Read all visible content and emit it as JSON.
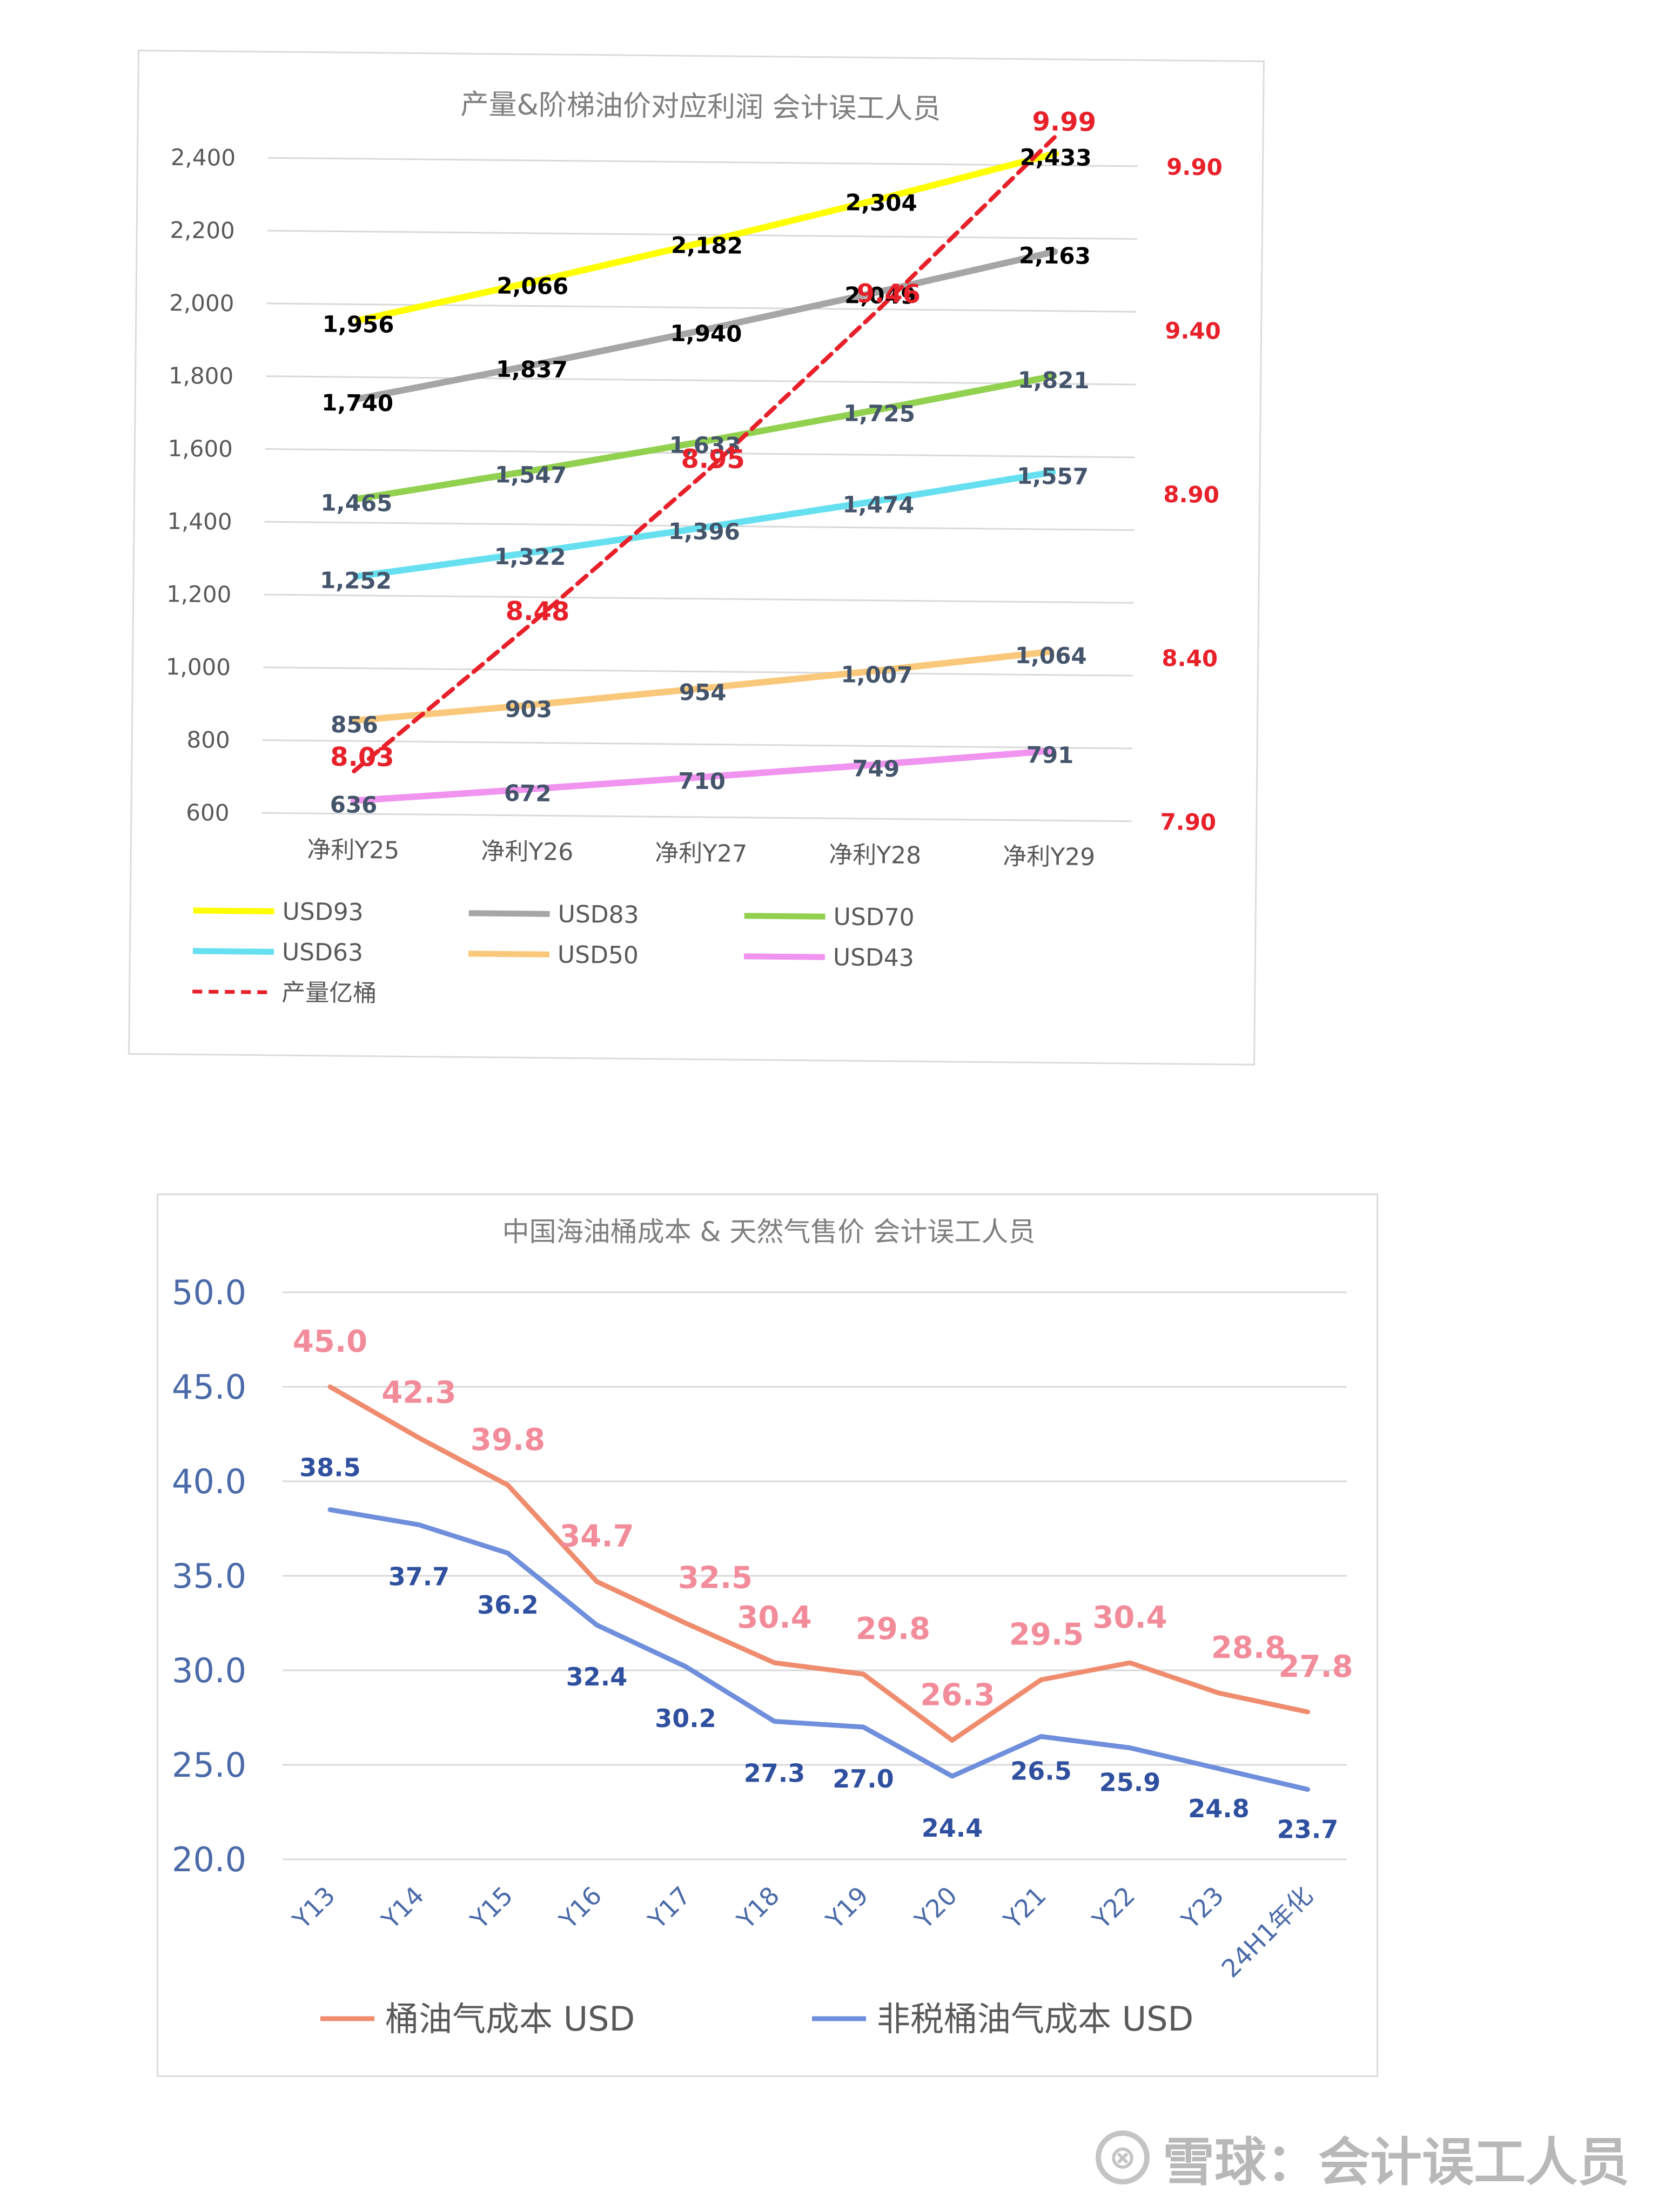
{
  "chart_data": [
    {
      "type": "line",
      "title": "产量&阶梯油价对应利润 会计误工人员",
      "categories": [
        "净利Y25",
        "净利Y26",
        "净利Y27",
        "净利Y28",
        "净利Y29"
      ],
      "y_axis_left": {
        "ticks": [
          "600",
          "800",
          "1,000",
          "1,200",
          "1,400",
          "1,600",
          "1,800",
          "2,000",
          "2,200",
          "2,400"
        ],
        "ylim": [
          600,
          2400
        ]
      },
      "y_axis_right": {
        "ticks": [
          "7.90",
          "8.40",
          "8.90",
          "9.40",
          "9.90"
        ],
        "ylim": [
          7.9,
          9.9
        ]
      },
      "grid": true,
      "legend_placement": "bottom",
      "series": [
        {
          "name": "USD93",
          "color": "#ffff00",
          "axis": "left",
          "values": [
            1956,
            2066,
            2182,
            2304,
            2433
          ],
          "labels": [
            "1,956",
            "2,066",
            "2,182",
            "2,304",
            "2,433"
          ],
          "label_color": "#000000",
          "dashed": false
        },
        {
          "name": "USD83",
          "color": "#a6a6a6",
          "axis": "left",
          "values": [
            1740,
            1837,
            1940,
            2049,
            2163
          ],
          "labels": [
            "1,740",
            "1,837",
            "1,940",
            "2,049",
            "2,163"
          ],
          "label_color": "#000000",
          "dashed": false
        },
        {
          "name": "USD70",
          "color": "#92d050",
          "axis": "left",
          "values": [
            1465,
            1547,
            1633,
            1725,
            1821
          ],
          "labels": [
            "1,465",
            "1,547",
            "1,633",
            "1,725",
            "1,821"
          ],
          "label_color": "#44546a",
          "dashed": false
        },
        {
          "name": "USD63",
          "color": "#66e0f0",
          "axis": "left",
          "values": [
            1252,
            1322,
            1396,
            1474,
            1557
          ],
          "labels": [
            "1,252",
            "1,322",
            "1,396",
            "1,474",
            "1,557"
          ],
          "label_color": "#44546a",
          "dashed": false
        },
        {
          "name": "USD50",
          "color": "#fac87a",
          "axis": "left",
          "values": [
            856,
            903,
            954,
            1007,
            1064
          ],
          "labels": [
            "856",
            "903",
            "954",
            "1,007",
            "1,064"
          ],
          "label_color": "#44546a",
          "dashed": false
        },
        {
          "name": "USD43",
          "color": "#f094f0",
          "axis": "left",
          "values": [
            636,
            672,
            710,
            749,
            791
          ],
          "labels": [
            "636",
            "672",
            "710",
            "749",
            "791"
          ],
          "label_color": "#44546a",
          "dashed": false
        },
        {
          "name": "产量亿桶",
          "color": "#e8202a",
          "axis": "right",
          "values": [
            8.03,
            8.48,
            8.95,
            9.46,
            9.99
          ],
          "labels": [
            "8.03",
            "8.48",
            "8.95",
            "9.46",
            "9.99"
          ],
          "label_color": "#e8202a",
          "dashed": true
        }
      ],
      "legend_order": [
        "USD93",
        "USD83",
        "USD70",
        "USD63",
        "USD50",
        "USD43",
        "产量亿桶"
      ]
    },
    {
      "type": "line",
      "title": "中国海油桶成本 & 天然气售价 会计误工人员",
      "categories": [
        "Y13",
        "Y14",
        "Y15",
        "Y16",
        "Y17",
        "Y18",
        "Y19",
        "Y20",
        "Y21",
        "Y22",
        "Y23",
        "24H1年化"
      ],
      "y_axis": {
        "ticks": [
          "20.0",
          "25.0",
          "30.0",
          "35.0",
          "40.0",
          "45.0",
          "50.0"
        ],
        "ylim": [
          20,
          50
        ]
      },
      "grid": true,
      "legend_placement": "bottom",
      "series": [
        {
          "name": "桶油气成本 USD",
          "color": "#f08c6e",
          "label_color": "#f28b9a",
          "values": [
            45.0,
            42.3,
            39.8,
            34.7,
            32.5,
            30.4,
            29.8,
            26.3,
            29.5,
            30.4,
            28.8,
            27.8
          ],
          "labels": [
            "45.0",
            "42.3",
            "39.8",
            "34.7",
            "32.5",
            "30.4",
            "29.8",
            "26.3",
            "29.5",
            "30.4",
            "28.8",
            "27.8"
          ]
        },
        {
          "name": "非税桶油气成本 USD",
          "color": "#6f8fdc",
          "label_color": "#2f4f9f",
          "values": [
            38.5,
            37.7,
            36.2,
            32.4,
            30.2,
            27.3,
            27.0,
            24.4,
            26.5,
            25.9,
            24.8,
            23.7
          ],
          "labels": [
            "38.5",
            "37.7",
            "36.2",
            "32.4",
            "30.2",
            "27.3",
            "27.0",
            "24.4",
            "26.5",
            "25.9",
            "24.8",
            "23.7"
          ]
        }
      ]
    }
  ],
  "watermark": {
    "logo_glyph": "⊗",
    "text": "雪球：会计误工人员"
  }
}
